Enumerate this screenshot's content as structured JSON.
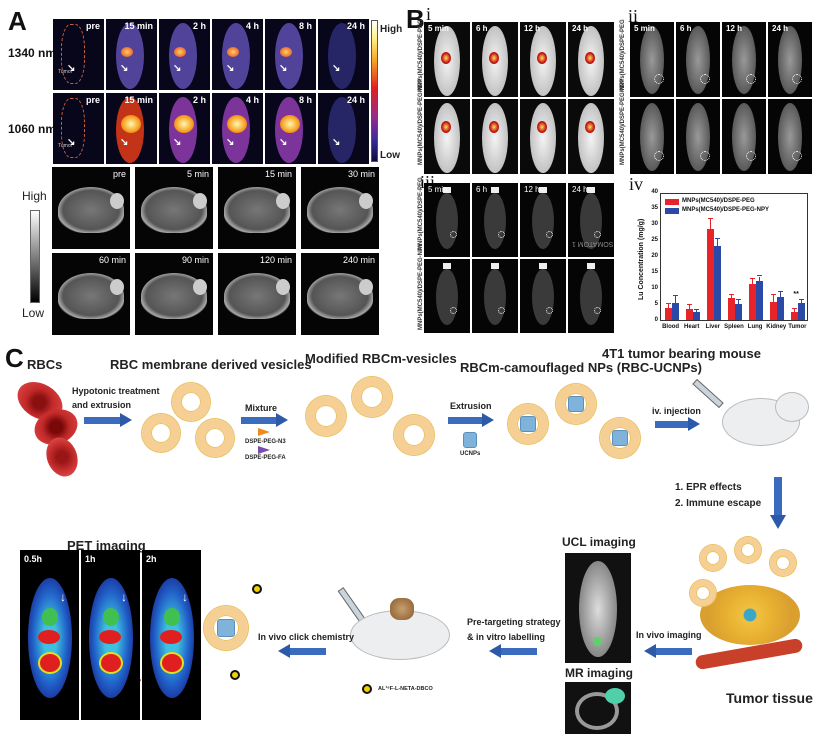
{
  "panels": {
    "A": {
      "label": "A",
      "rows": [
        {
          "label": "1340 nm"
        },
        {
          "label": "1060 nm"
        }
      ],
      "nir_timepoints": [
        "pre",
        "15 min",
        "2 h",
        "4 h",
        "8 h",
        "24 h"
      ],
      "tumor_label": "Tumor",
      "colorbar": {
        "high": "High",
        "low": "Low"
      },
      "mri_colorbar": {
        "high": "High",
        "low": "Low"
      },
      "mri_timepoints_row1": [
        "pre",
        "5 min",
        "15 min",
        "30 min"
      ],
      "mri_timepoints_row2": [
        "60 min",
        "90 min",
        "120 min",
        "240 min"
      ]
    },
    "B": {
      "label": "B",
      "sub_i": {
        "label": "i",
        "timepoints": [
          "5 min",
          "6 h",
          "12 h",
          "24 h"
        ],
        "row_labels": [
          "MNPs(MC540)/DSPE-PEG",
          "MNPs(MC540)/DSPE-PEG-NPY"
        ]
      },
      "sub_ii": {
        "label": "ii",
        "timepoints": [
          "5 min",
          "6 h",
          "12 h",
          "24 h"
        ],
        "row_labels": [
          "MNPs(MC540)/DSPE-PEG",
          "MNPs(MC540)/DSPE-PEG-NPY"
        ]
      },
      "sub_iii": {
        "label": "iii",
        "timepoints": [
          "5 min",
          "6 h",
          "12 h",
          "24 h"
        ],
        "row_labels": [
          "MNPs(MC540)/DSPE-PEG",
          "MNPs(MC540)/DSPE-PEG-NPY"
        ],
        "watermark": "SOMATOM 1"
      },
      "sub_iv": {
        "label": "iv"
      }
    },
    "C": {
      "label": "C",
      "steps": {
        "rbcs": "RBCs",
        "vesicles": "RBC membrane derived vesicles",
        "modified": "Modified RBCm-vesicles",
        "camouflaged": "RBCm-camouflaged NPs (RBC-UCNPs)",
        "mouse": "4T1 tumor bearing mouse",
        "tumor": "Tumor tissue",
        "ucl": "UCL imaging",
        "mr": "MR imaging",
        "pet": "PET imaging"
      },
      "arrows": {
        "hypotonic_1": "Hypotonic treatment",
        "hypotonic_2": "and extrusion",
        "mixture": "Mixture",
        "n3": "DSPE-PEG-N3",
        "fa": "DSPE-PEG-FA",
        "extrusion": "Extrusion",
        "ucnps": "UCNPs",
        "injection": "iv. injection",
        "epr": "1. EPR effects",
        "immune": "2. Immune escape",
        "invivo_imaging": "In vivo imaging",
        "pretarget_1": "Pre-targeting strategy",
        "pretarget_2": "& in vitro labelling",
        "click": "In vivo click chemistry",
        "probe": "AL¹⁸F-L-NETA-DBCO"
      },
      "pet_timepoints": [
        "0.5h",
        "1h",
        "2h"
      ]
    }
  },
  "chart_data": {
    "type": "bar",
    "title": "",
    "xlabel": "",
    "ylabel": "Lu Concentration (mg/g)",
    "ylim": [
      0,
      40
    ],
    "yticks": [
      0,
      5,
      10,
      15,
      20,
      25,
      30,
      35,
      40
    ],
    "categories": [
      "Blood",
      "Heart",
      "Liver",
      "Spleen",
      "Lung",
      "Kidney",
      "Tumor"
    ],
    "series": [
      {
        "name": "MNPs(MC540)/DSPE-PEG",
        "color": "#e8232a",
        "values": [
          3.7,
          3.5,
          28.5,
          7.0,
          11.2,
          5.5,
          2.5
        ],
        "errors": [
          1.2,
          1.3,
          3.2,
          0.8,
          1.5,
          2.2,
          1.0
        ]
      },
      {
        "name": "MNPs(MC540)/DSPE-PEG-NPY",
        "color": "#2b4aa8",
        "values": [
          5.2,
          2.6,
          23.0,
          5.1,
          12.2,
          7.2,
          5.4
        ],
        "errors": [
          2.4,
          0.6,
          2.2,
          1.3,
          1.4,
          1.6,
          1.0
        ]
      }
    ],
    "annotations": [
      {
        "category": "Tumor",
        "text": "**"
      }
    ],
    "legend_position": "top-left",
    "grid": false
  }
}
